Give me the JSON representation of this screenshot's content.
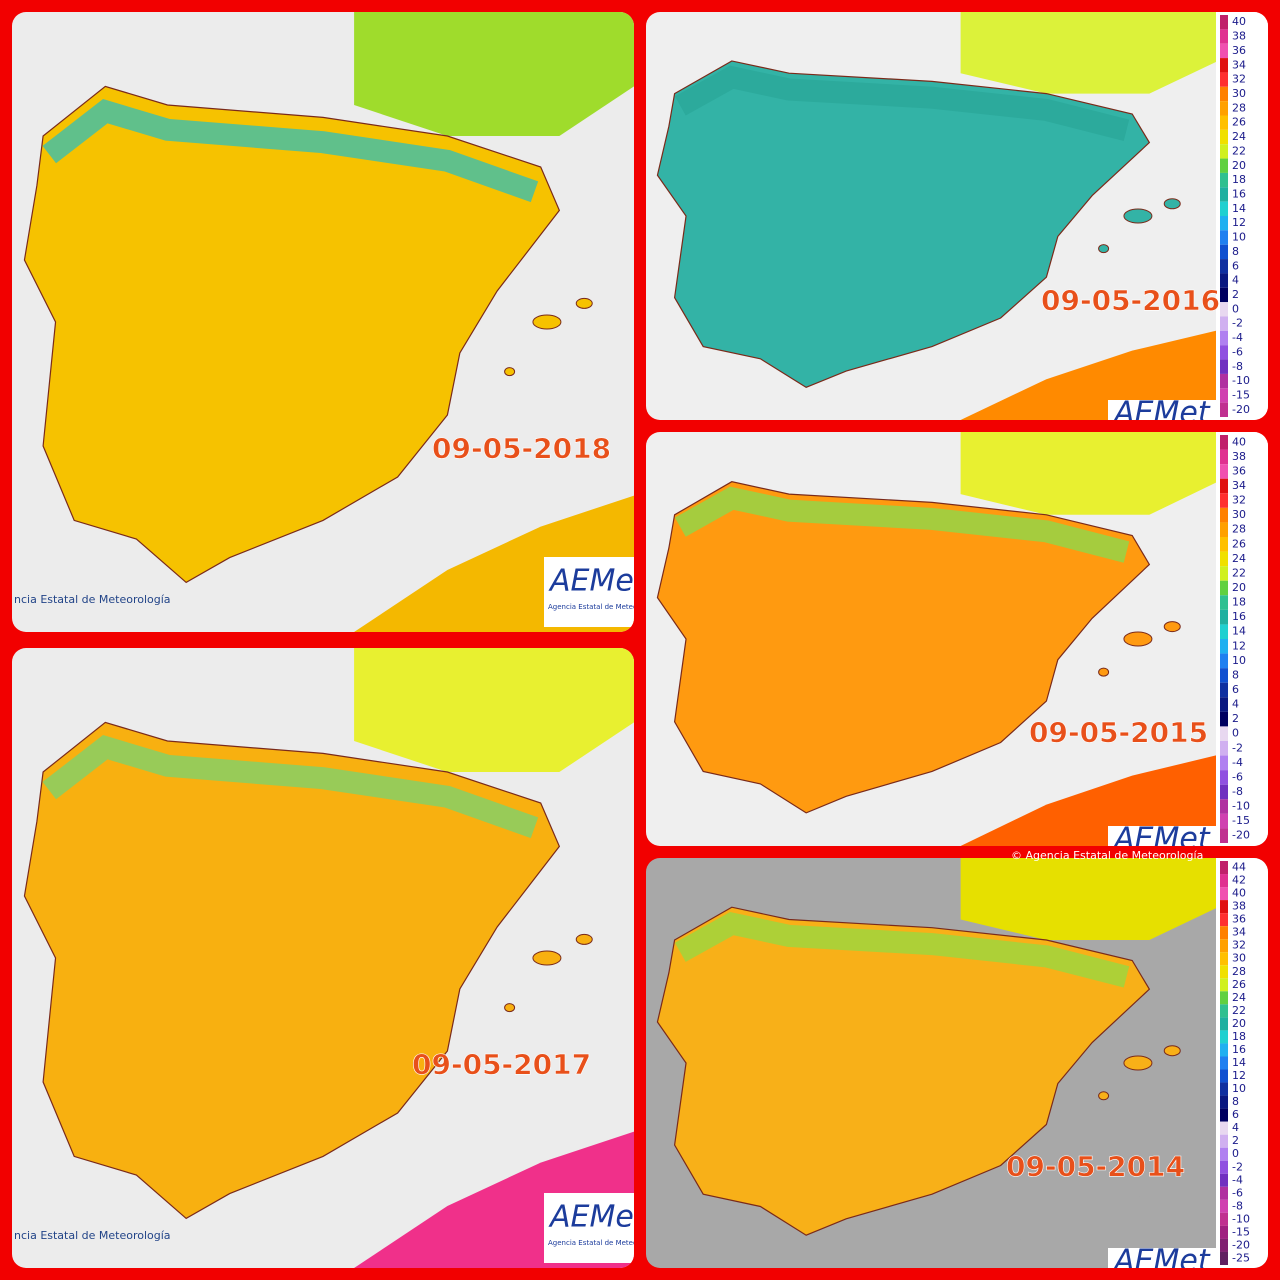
{
  "panels": [
    {
      "date": "09-05-2018",
      "attribution": "ncia Estatal de Meteorología",
      "logo": "AEMet",
      "logo_caption": "Agencia Estatal de Meteorología"
    },
    {
      "date": "09-05-2016",
      "logo": "AEMet",
      "legend": [
        40,
        38,
        36,
        34,
        32,
        30,
        28,
        26,
        24,
        22,
        20,
        18,
        16,
        14,
        12,
        10,
        8,
        6,
        4,
        2,
        0,
        -2,
        -4,
        -6,
        -8,
        -10,
        -15,
        -20
      ]
    },
    {
      "date": "09-05-2015",
      "logo": "AEMet",
      "legend": [
        40,
        38,
        36,
        34,
        32,
        30,
        28,
        26,
        24,
        22,
        20,
        18,
        16,
        14,
        12,
        10,
        8,
        6,
        4,
        2,
        0,
        -2,
        -4,
        -6,
        -8,
        -10,
        -15,
        -20
      ]
    },
    {
      "date": "09-05-2017",
      "attribution": "ncia Estatal de Meteorología",
      "logo": "AEMet",
      "logo_caption": "Agencia Estatal de Meteorología"
    },
    {
      "date": "09-05-2014",
      "attribution": "© Agencia Estatal de Meteorología",
      "logo": "AEMet",
      "legend": [
        44,
        42,
        40,
        38,
        36,
        34,
        32,
        30,
        28,
        26,
        24,
        22,
        20,
        18,
        16,
        14,
        12,
        10,
        8,
        6,
        4,
        2,
        0,
        -2,
        -4,
        -6,
        -8,
        -10,
        -15,
        -20,
        -25
      ]
    }
  ]
}
